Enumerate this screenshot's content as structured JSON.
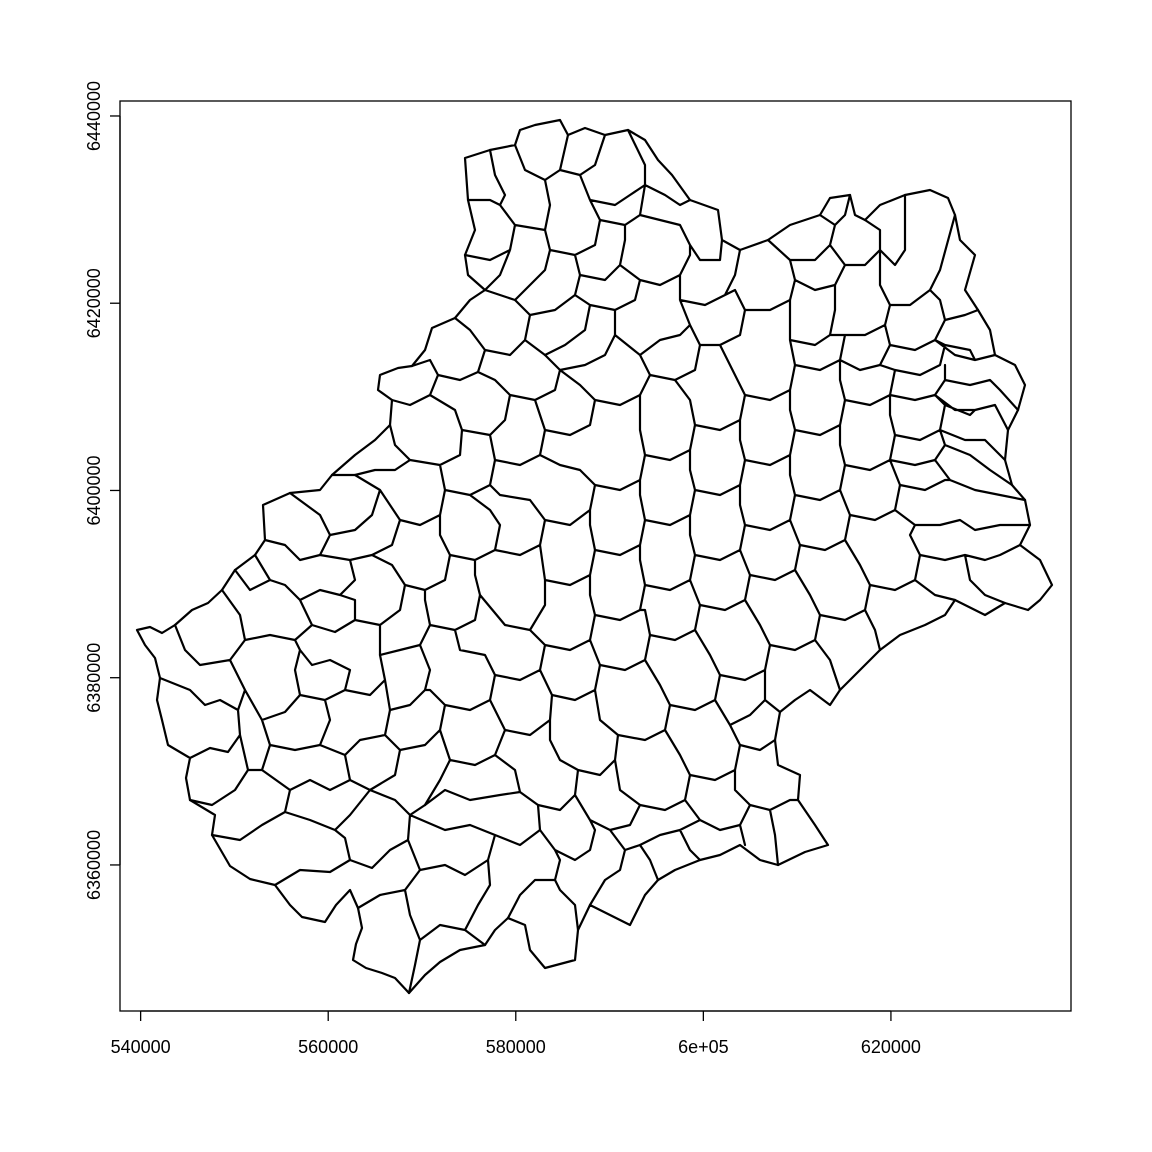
{
  "chart_data": {
    "type": "map",
    "title": "",
    "xlabel": "",
    "ylabel": "",
    "xlim": [
      537800,
      639200
    ],
    "ylim": [
      6344400,
      6441600
    ],
    "x_ticks": [
      540000,
      560000,
      580000,
      600000,
      620000
    ],
    "x_tick_labels": [
      "540000",
      "560000",
      "580000",
      "6e+05",
      "620000"
    ],
    "y_ticks": [
      6360000,
      6380000,
      6400000,
      6420000,
      6440000
    ],
    "y_tick_labels": [
      "6360000",
      "6380000",
      "6400000",
      "6420000",
      "6440000"
    ],
    "grid": false,
    "line_color": "#000000",
    "background": "#ffffff"
  }
}
